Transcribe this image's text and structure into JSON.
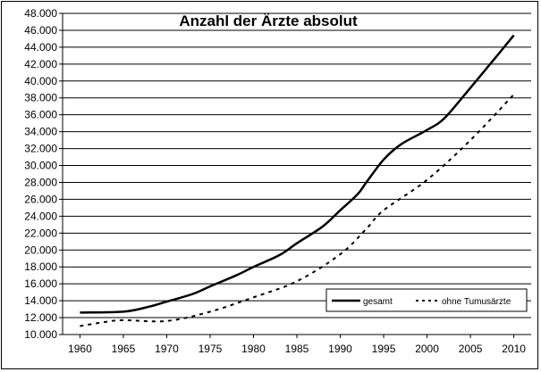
{
  "chart_data": {
    "type": "line",
    "title": "Anzahl der Ärzte absolut",
    "xlabel": "",
    "ylabel": "",
    "x": [
      1960,
      1965,
      1970,
      1975,
      1980,
      1985,
      1990,
      1995,
      2000,
      2005,
      2010
    ],
    "xlim": [
      1958,
      2012
    ],
    "ylim": [
      10000,
      48000
    ],
    "y_ticks": [
      10000,
      12000,
      14000,
      16000,
      18000,
      20000,
      22000,
      24000,
      26000,
      28000,
      30000,
      32000,
      34000,
      36000,
      38000,
      40000,
      42000,
      44000,
      46000,
      48000
    ],
    "y_tick_labels": [
      "10.000",
      "12.000",
      "14.000",
      "16.000",
      "18.000",
      "20.000",
      "22.000",
      "24.000",
      "26.000",
      "28.000",
      "30.000",
      "32.000",
      "34.000",
      "36.000",
      "38.000",
      "40.000",
      "42.000",
      "44.000",
      "46.000",
      "48.000"
    ],
    "x_tick_labels": [
      "1960",
      "1965",
      "1970",
      "1975",
      "1980",
      "1985",
      "1990",
      "1995",
      "2000",
      "2005",
      "2010"
    ],
    "grid": "horizontal",
    "legend_position": "bottom-right",
    "series": [
      {
        "name": "gesamt",
        "style": "solid",
        "color": "#000000",
        "points": [
          [
            1960,
            12600
          ],
          [
            1965,
            12700
          ],
          [
            1968,
            13300
          ],
          [
            1970,
            13900
          ],
          [
            1973,
            14800
          ],
          [
            1975,
            15700
          ],
          [
            1978,
            17000
          ],
          [
            1980,
            18000
          ],
          [
            1983,
            19400
          ],
          [
            1985,
            20800
          ],
          [
            1988,
            22800
          ],
          [
            1990,
            24700
          ],
          [
            1992,
            26600
          ],
          [
            1993,
            28000
          ],
          [
            1995,
            30700
          ],
          [
            1997,
            32500
          ],
          [
            2000,
            34200
          ],
          [
            2002,
            35600
          ],
          [
            2005,
            39200
          ],
          [
            2008,
            42900
          ],
          [
            2010,
            45400
          ]
        ]
      },
      {
        "name": "ohne Tumusärzte",
        "style": "dashed",
        "color": "#000000",
        "points": [
          [
            1960,
            11000
          ],
          [
            1963,
            11500
          ],
          [
            1965,
            11700
          ],
          [
            1970,
            11600
          ],
          [
            1975,
            12700
          ],
          [
            1980,
            14400
          ],
          [
            1985,
            16300
          ],
          [
            1990,
            19500
          ],
          [
            1993,
            22500
          ],
          [
            1995,
            24700
          ],
          [
            2000,
            28300
          ],
          [
            2005,
            33000
          ],
          [
            2010,
            38400
          ]
        ]
      }
    ]
  }
}
